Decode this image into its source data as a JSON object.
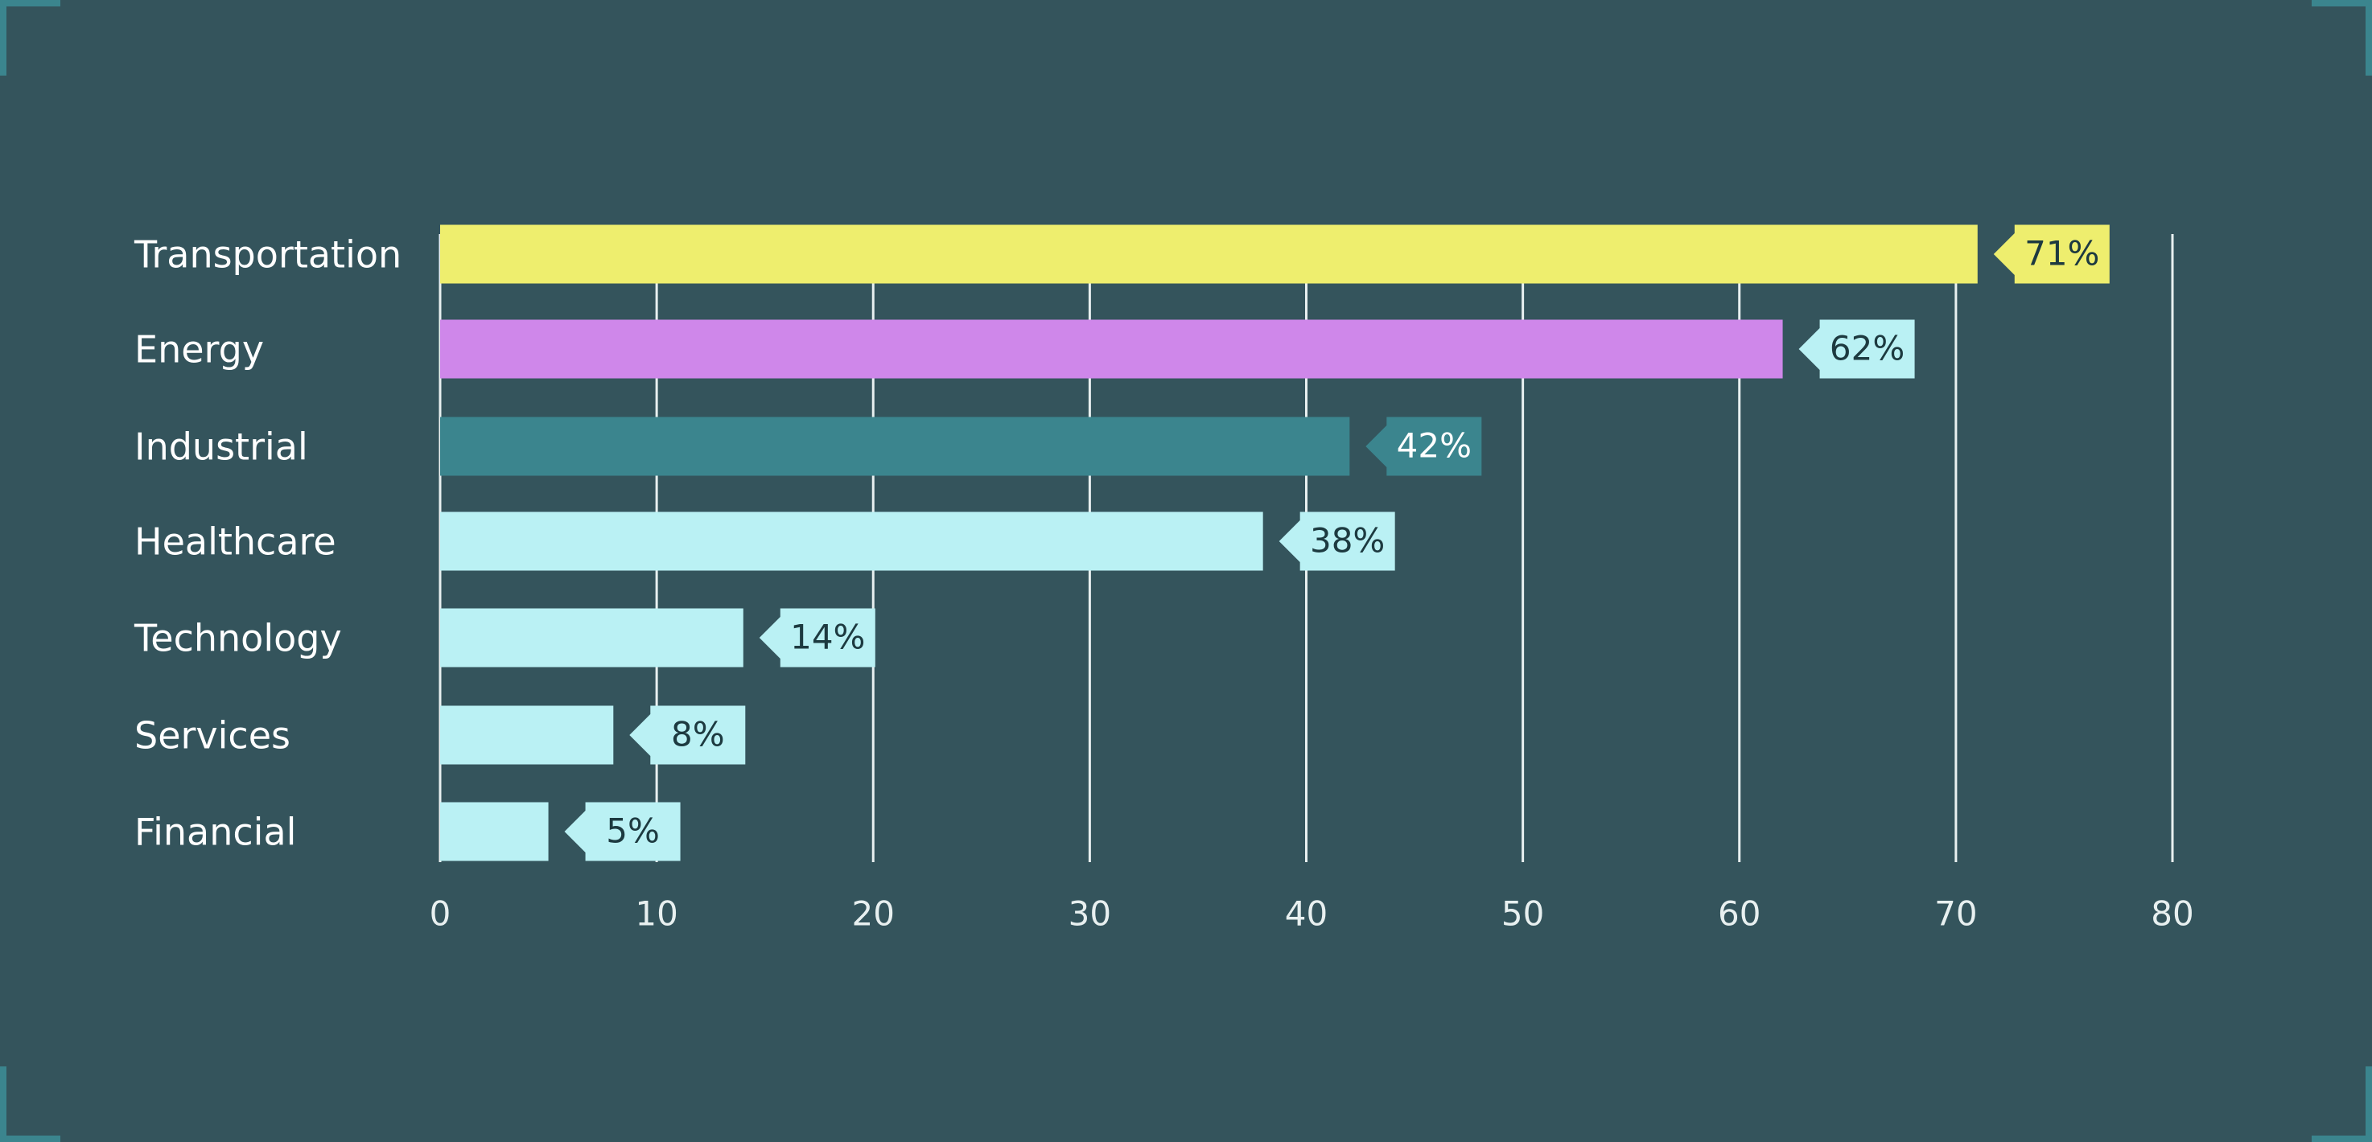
{
  "chart_data": {
    "type": "hbar",
    "categories": [
      "Transportation",
      "Energy",
      "Industrial",
      "Healthcare",
      "Technology",
      "Services",
      "Financial"
    ],
    "values": [
      71,
      62,
      42,
      38,
      14,
      8,
      5
    ],
    "value_labels": [
      "71%",
      "62%",
      "42%",
      "38%",
      "14%",
      "8%",
      "5%"
    ],
    "colors": [
      "#eeee6e",
      "#cf87ea",
      "#3b858e",
      "#baf1f4",
      "#baf1f4",
      "#baf1f4",
      "#baf1f4"
    ],
    "label_colors": [
      "#eeee6e",
      "#baf1f4",
      "#3b858e",
      "#baf1f4",
      "#baf1f4",
      "#baf1f4",
      "#baf1f4"
    ],
    "xlim": [
      0,
      80
    ],
    "xticks": [
      0,
      10,
      20,
      30,
      40,
      50,
      60,
      70,
      80
    ],
    "grid": true
  }
}
